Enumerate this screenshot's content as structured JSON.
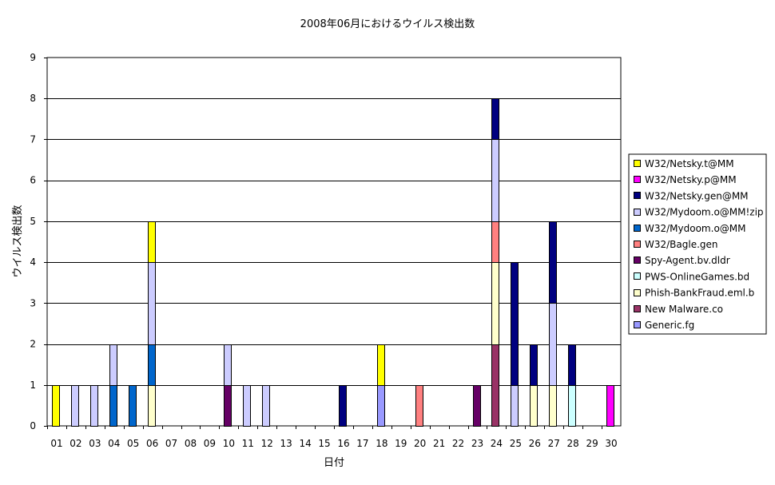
{
  "chart_data": {
    "type": "bar",
    "stacked": true,
    "title": "2008年06月におけるウイルス検出数",
    "xlabel": "日付",
    "ylabel": "ウイルス検出数",
    "ylim": [
      0,
      9
    ],
    "yticks": [
      0,
      1,
      2,
      3,
      4,
      5,
      6,
      7,
      8,
      9
    ],
    "grid": true,
    "legend_position": "right",
    "categories": [
      "01",
      "02",
      "03",
      "04",
      "05",
      "06",
      "07",
      "08",
      "09",
      "10",
      "11",
      "12",
      "13",
      "14",
      "15",
      "16",
      "17",
      "18",
      "19",
      "20",
      "21",
      "22",
      "23",
      "24",
      "25",
      "26",
      "27",
      "28",
      "29",
      "30"
    ],
    "series": [
      {
        "name": "Generic.fg",
        "color": "#9999ff",
        "values": [
          0,
          0,
          0,
          0,
          0,
          0,
          0,
          0,
          0,
          0,
          0,
          0,
          0,
          0,
          0,
          0,
          0,
          1,
          0,
          0,
          0,
          0,
          0,
          0,
          0,
          0,
          0,
          0,
          0,
          0
        ]
      },
      {
        "name": "New Malware.co",
        "color": "#993366",
        "values": [
          0,
          0,
          0,
          0,
          0,
          0,
          0,
          0,
          0,
          0,
          0,
          0,
          0,
          0,
          0,
          0,
          0,
          0,
          0,
          0,
          0,
          0,
          0,
          2,
          0,
          0,
          0,
          0,
          0,
          0
        ]
      },
      {
        "name": "Phish-BankFraud.eml.b",
        "color": "#ffffcc",
        "values": [
          0,
          0,
          0,
          0,
          0,
          1,
          0,
          0,
          0,
          0,
          0,
          0,
          0,
          0,
          0,
          0,
          0,
          0,
          0,
          0,
          0,
          0,
          0,
          2,
          0,
          1,
          1,
          0,
          0,
          0
        ]
      },
      {
        "name": "PWS-OnlineGames.bd",
        "color": "#ccffff",
        "values": [
          0,
          0,
          0,
          0,
          0,
          0,
          0,
          0,
          0,
          0,
          0,
          0,
          0,
          0,
          0,
          0,
          0,
          0,
          0,
          0,
          0,
          0,
          0,
          0,
          0,
          0,
          0,
          1,
          0,
          0
        ]
      },
      {
        "name": "Spy-Agent.bv.dldr",
        "color": "#660066",
        "values": [
          0,
          0,
          0,
          0,
          0,
          0,
          0,
          0,
          0,
          1,
          0,
          0,
          0,
          0,
          0,
          0,
          0,
          0,
          0,
          0,
          0,
          0,
          1,
          0,
          0,
          0,
          0,
          0,
          0,
          0
        ]
      },
      {
        "name": "W32/Bagle.gen",
        "color": "#ff8080",
        "values": [
          0,
          0,
          0,
          0,
          0,
          0,
          0,
          0,
          0,
          0,
          0,
          0,
          0,
          0,
          0,
          0,
          0,
          0,
          0,
          1,
          0,
          0,
          0,
          1,
          0,
          0,
          0,
          0,
          0,
          0
        ]
      },
      {
        "name": "W32/Mydoom.o@MM",
        "color": "#0066cc",
        "values": [
          0,
          0,
          0,
          1,
          1,
          1,
          0,
          0,
          0,
          0,
          0,
          0,
          0,
          0,
          0,
          0,
          0,
          0,
          0,
          0,
          0,
          0,
          0,
          0,
          0,
          0,
          0,
          0,
          0,
          0
        ]
      },
      {
        "name": "W32/Mydoom.o@MM!zip",
        "color": "#ccccff",
        "values": [
          0,
          1,
          1,
          1,
          0,
          2,
          0,
          0,
          0,
          1,
          1,
          1,
          0,
          0,
          0,
          0,
          0,
          0,
          0,
          0,
          0,
          0,
          0,
          2,
          1,
          0,
          2,
          0,
          0,
          0
        ]
      },
      {
        "name": "W32/Netsky.gen@MM",
        "color": "#000080",
        "values": [
          0,
          0,
          0,
          0,
          0,
          0,
          0,
          0,
          0,
          0,
          0,
          0,
          0,
          0,
          0,
          1,
          0,
          0,
          0,
          0,
          0,
          0,
          0,
          1,
          3,
          1,
          2,
          1,
          0,
          0
        ]
      },
      {
        "name": "W32/Netsky.p@MM",
        "color": "#ff00ff",
        "values": [
          0,
          0,
          0,
          0,
          0,
          0,
          0,
          0,
          0,
          0,
          0,
          0,
          0,
          0,
          0,
          0,
          0,
          0,
          0,
          0,
          0,
          0,
          0,
          0,
          0,
          0,
          0,
          0,
          0,
          1
        ]
      },
      {
        "name": "W32/Netsky.t@MM",
        "color": "#ffff00",
        "values": [
          1,
          0,
          0,
          0,
          0,
          1,
          0,
          0,
          0,
          0,
          0,
          0,
          0,
          0,
          0,
          0,
          0,
          1,
          0,
          0,
          0,
          0,
          0,
          0,
          0,
          0,
          0,
          0,
          0,
          0
        ]
      }
    ]
  }
}
